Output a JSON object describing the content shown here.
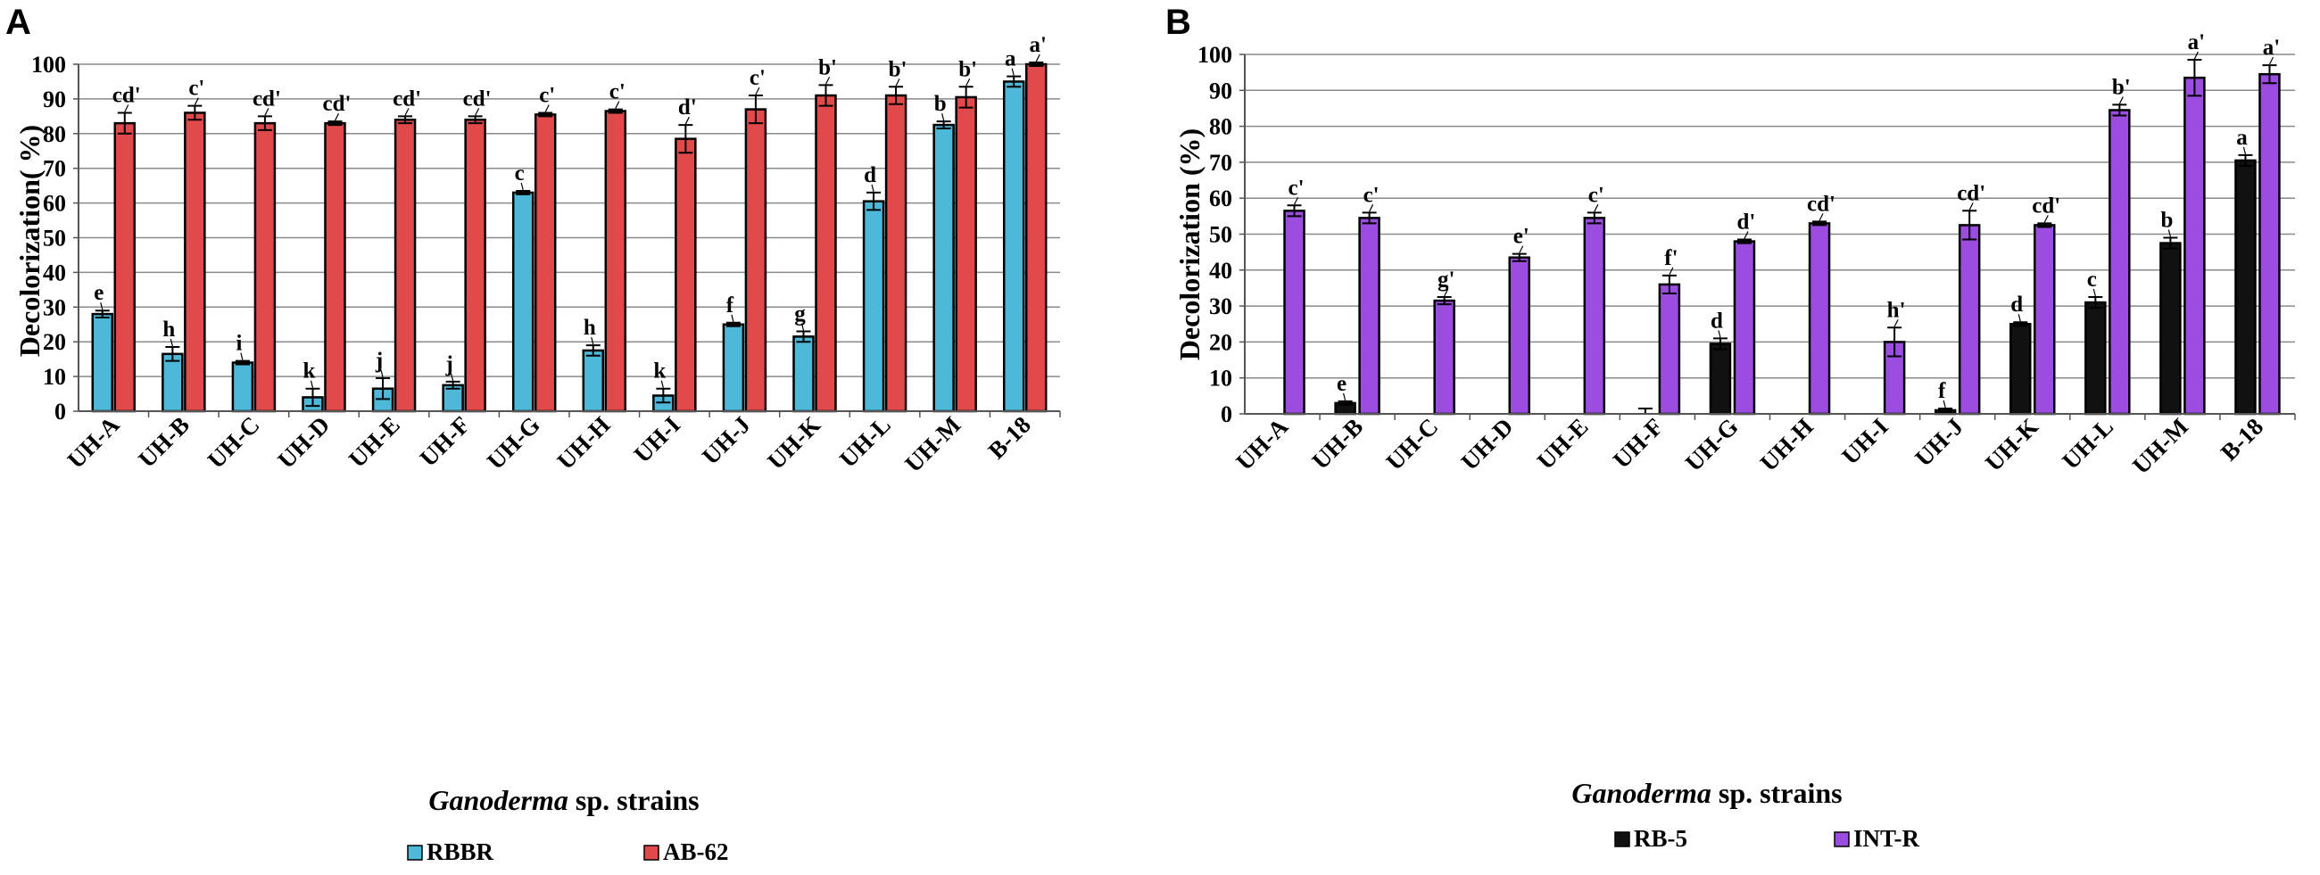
{
  "chart_data": [
    {
      "panel": "A",
      "type": "bar",
      "ylabel": "Decolorization(  %)",
      "xlabel_italic": "Ganoderma",
      "xlabel_rest": " sp. strains",
      "ylim": [
        0,
        100
      ],
      "yticks": [
        0,
        10,
        20,
        30,
        40,
        50,
        60,
        70,
        80,
        90,
        100
      ],
      "grid": true,
      "legend_position": "bottom",
      "categories": [
        "UH-A",
        "UH-B",
        "UH-C",
        "UH-D",
        "UH-E",
        "UH-F",
        "UH-G",
        "UH-H",
        "UH-I",
        "UH-J",
        "UH-K",
        "UH-L",
        "UH-M",
        "B-18"
      ],
      "series": [
        {
          "name": "RBBR",
          "color": "#4db8d8",
          "values": [
            28,
            16.5,
            14,
            4,
            6.5,
            7.5,
            63,
            17.5,
            4.5,
            25,
            21.5,
            60.5,
            82.5,
            95
          ],
          "errors": [
            1,
            2,
            0.5,
            2.5,
            3,
            1,
            0.5,
            1.5,
            2,
            0.5,
            1.5,
            2.5,
            1,
            1.5
          ],
          "labels": [
            "e",
            "h",
            "i",
            "k",
            "j",
            "j",
            "c",
            "h",
            "k",
            "f",
            "g",
            "d",
            "b",
            "a"
          ]
        },
        {
          "name": "AB-62",
          "color": "#e04a4a",
          "values": [
            83,
            86,
            83,
            83,
            84,
            84,
            85.5,
            86.5,
            78.5,
            87,
            91,
            91,
            90.5,
            100
          ],
          "errors": [
            3,
            2,
            2,
            0.5,
            1,
            1,
            0.5,
            0.5,
            4,
            4,
            3,
            2.5,
            3,
            0.5
          ],
          "labels": [
            "cd'",
            "c'",
            "cd'",
            "cd'",
            "cd'",
            "cd'",
            "c'",
            "c'",
            "d'",
            "c'",
            "b'",
            "b'",
            "b'",
            "a'"
          ]
        }
      ]
    },
    {
      "panel": "B",
      "type": "bar",
      "ylabel": "Decolorization   (%)",
      "xlabel_italic": "Ganoderma",
      "xlabel_rest": " sp. strains",
      "ylim": [
        0,
        100
      ],
      "yticks": [
        0,
        10,
        20,
        30,
        40,
        50,
        60,
        70,
        80,
        90,
        100
      ],
      "grid": true,
      "legend_position": "bottom",
      "categories": [
        "UH-A",
        "UH-B",
        "UH-C",
        "UH-D",
        "UH-E",
        "UH-F",
        "UH-G",
        "UH-H",
        "UH-I",
        "UH-J",
        "UH-K",
        "UH-L",
        "UH-M",
        "B-18"
      ],
      "series": [
        {
          "name": "RB-5",
          "color": "#111111",
          "values": [
            0,
            3,
            0,
            0,
            0,
            0,
            19.5,
            0,
            0,
            1,
            25,
            31,
            47.5,
            70.5
          ],
          "errors": [
            0,
            0.5,
            0,
            0,
            0,
            1.5,
            1.5,
            0,
            0,
            0.5,
            0.5,
            1.5,
            1.5,
            1.5
          ],
          "labels": [
            "",
            "e",
            "",
            "",
            "",
            "",
            "d",
            "",
            "",
            "f",
            "d",
            "c",
            "b",
            "a"
          ]
        },
        {
          "name": "INT-R",
          "color": "#9b4de0",
          "values": [
            56.5,
            54.5,
            31.5,
            43.5,
            54.5,
            36,
            48,
            53,
            20,
            52.5,
            52.5,
            84.5,
            93.5,
            94.5
          ],
          "errors": [
            1.5,
            1.5,
            1,
            1,
            1.5,
            2.5,
            0.5,
            0.5,
            4,
            4,
            0.5,
            1.5,
            5,
            2.5
          ],
          "labels": [
            "c'",
            "c'",
            "g'",
            "e'",
            "c'",
            "f'",
            "d'",
            "cd'",
            "h'",
            "cd'",
            "cd'",
            "b'",
            "a'",
            "a'"
          ]
        }
      ]
    }
  ]
}
